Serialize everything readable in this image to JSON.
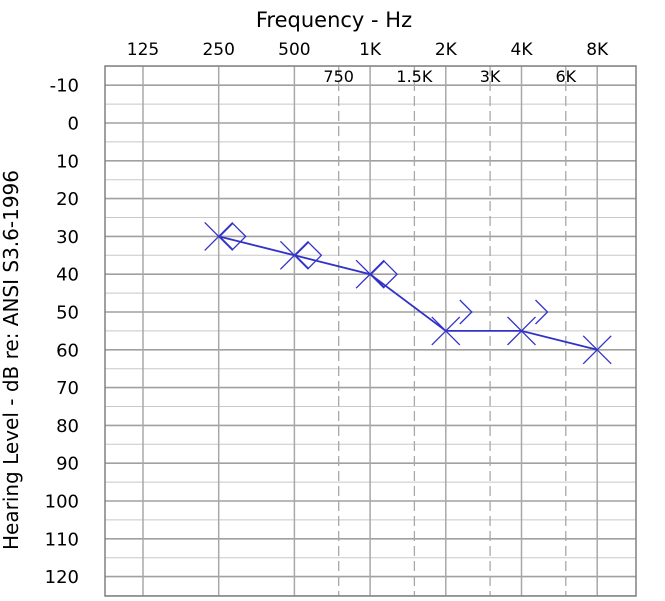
{
  "chart_data": {
    "type": "audiogram",
    "xlabel": "Frequency - Hz",
    "ylabel": "Hearing Level - dB   re: ANSI S3.6-1996",
    "x_scale": "log2",
    "x_major_ticks": [
      {
        "label": "125",
        "hz": 125
      },
      {
        "label": "250",
        "hz": 250
      },
      {
        "label": "500",
        "hz": 500
      },
      {
        "label": "1K",
        "hz": 1000
      },
      {
        "label": "2K",
        "hz": 2000
      },
      {
        "label": "4K",
        "hz": 4000
      },
      {
        "label": "8K",
        "hz": 8000
      }
    ],
    "x_minor_ticks": [
      {
        "label": "750",
        "hz": 750
      },
      {
        "label": "1.5K",
        "hz": 1500
      },
      {
        "label": "3K",
        "hz": 3000
      },
      {
        "label": "6K",
        "hz": 6000
      }
    ],
    "y_ticks": [
      -10,
      0,
      10,
      20,
      30,
      40,
      50,
      60,
      70,
      80,
      90,
      100,
      110,
      120
    ],
    "ylim": [
      -15,
      125
    ],
    "y_inverted": true,
    "grid": true,
    "series": [
      {
        "symbol": "X",
        "color": "#3232c8",
        "points": [
          {
            "hz": 250,
            "db": 30
          },
          {
            "hz": 500,
            "db": 35
          },
          {
            "hz": 1000,
            "db": 40
          },
          {
            "hz": 2000,
            "db": 55
          },
          {
            "hz": 4000,
            "db": 55
          },
          {
            "hz": 8000,
            "db": 60
          }
        ]
      }
    ],
    "bone_conduction_markers": [
      {
        "symbol": "diamond",
        "hz": 250,
        "db": 30
      },
      {
        "symbol": "diamond",
        "hz": 500,
        "db": 35
      },
      {
        "symbol": "diamond",
        "hz": 1000,
        "db": 40
      },
      {
        "symbol": ">",
        "hz": 2000,
        "db": 50
      },
      {
        "symbol": ">",
        "hz": 4000,
        "db": 50
      }
    ]
  }
}
